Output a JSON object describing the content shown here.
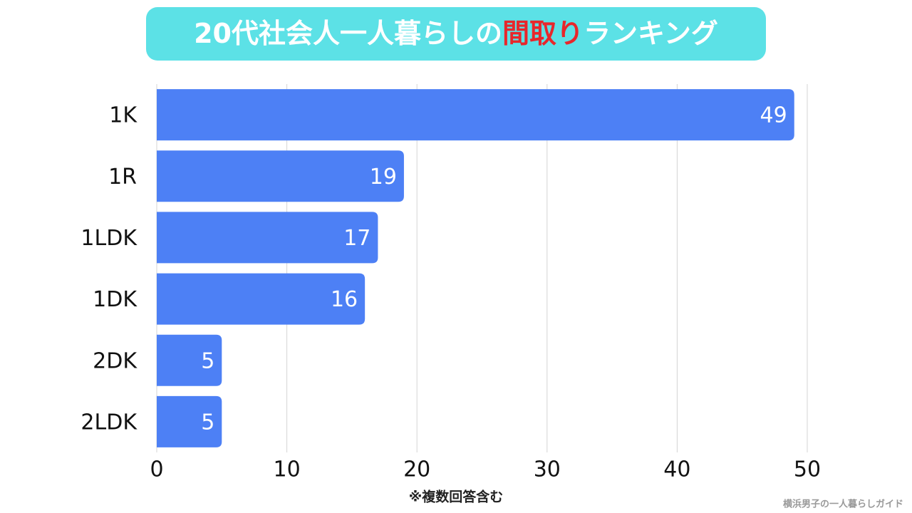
{
  "chart_data": {
    "type": "bar",
    "orientation": "horizontal",
    "title": [
      "20代社会人一人暮らしの",
      "間取り",
      "ランキング"
    ],
    "title_colors": [
      "#ffffff",
      "#e8262b",
      "#ffffff"
    ],
    "categories": [
      "1K",
      "1R",
      "1LDK",
      "1DK",
      "2DK",
      "2LDK"
    ],
    "values": [
      49,
      19,
      17,
      16,
      5,
      5
    ],
    "color": "#4d80f5",
    "xlim": [
      0,
      50
    ],
    "xticks": [
      0,
      10,
      20,
      30,
      40,
      50
    ],
    "grid": true,
    "note": "※複数回答含む",
    "source": "横浜男子の一人暮らしガイド"
  }
}
